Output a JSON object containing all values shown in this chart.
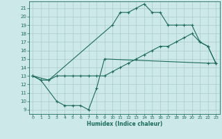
{
  "xlabel": "Humidex (Indice chaleur)",
  "bg_color": "#cce8e8",
  "line_color": "#1a6b5a",
  "grid_color": "#aacccc",
  "xlim": [
    -0.5,
    23.5
  ],
  "ylim": [
    8.5,
    21.8
  ],
  "yticks": [
    9,
    10,
    11,
    12,
    13,
    14,
    15,
    16,
    17,
    18,
    19,
    20,
    21
  ],
  "xticks": [
    0,
    1,
    2,
    3,
    4,
    5,
    6,
    7,
    8,
    9,
    10,
    11,
    12,
    13,
    14,
    15,
    16,
    17,
    18,
    19,
    20,
    21,
    22,
    23
  ],
  "curve1_x": [
    0,
    1,
    2,
    10,
    11,
    12,
    13,
    14,
    15,
    16,
    17,
    18,
    19,
    20,
    21,
    22,
    23
  ],
  "curve1_y": [
    13,
    12.5,
    12.5,
    19,
    20.5,
    20.5,
    21,
    21.5,
    20.5,
    20.5,
    19,
    19,
    19,
    19,
    17,
    16.5,
    14.5
  ],
  "curve2_x": [
    0,
    1,
    3,
    4,
    5,
    6,
    7,
    8,
    9,
    22,
    23
  ],
  "curve2_y": [
    13,
    12.5,
    10,
    9.5,
    9.5,
    9.5,
    9,
    11.5,
    15,
    14.5,
    14.5
  ],
  "curve3_x": [
    0,
    2,
    3,
    4,
    5,
    6,
    7,
    8,
    9,
    10,
    11,
    12,
    13,
    14,
    15,
    16,
    17,
    18,
    19,
    20,
    21,
    22,
    23
  ],
  "curve3_y": [
    13,
    12.5,
    13,
    13,
    13,
    13,
    13,
    13,
    13,
    13.5,
    14,
    14.5,
    15,
    15.5,
    16,
    16.5,
    16.5,
    17,
    17.5,
    18,
    17,
    16.5,
    14.5
  ]
}
